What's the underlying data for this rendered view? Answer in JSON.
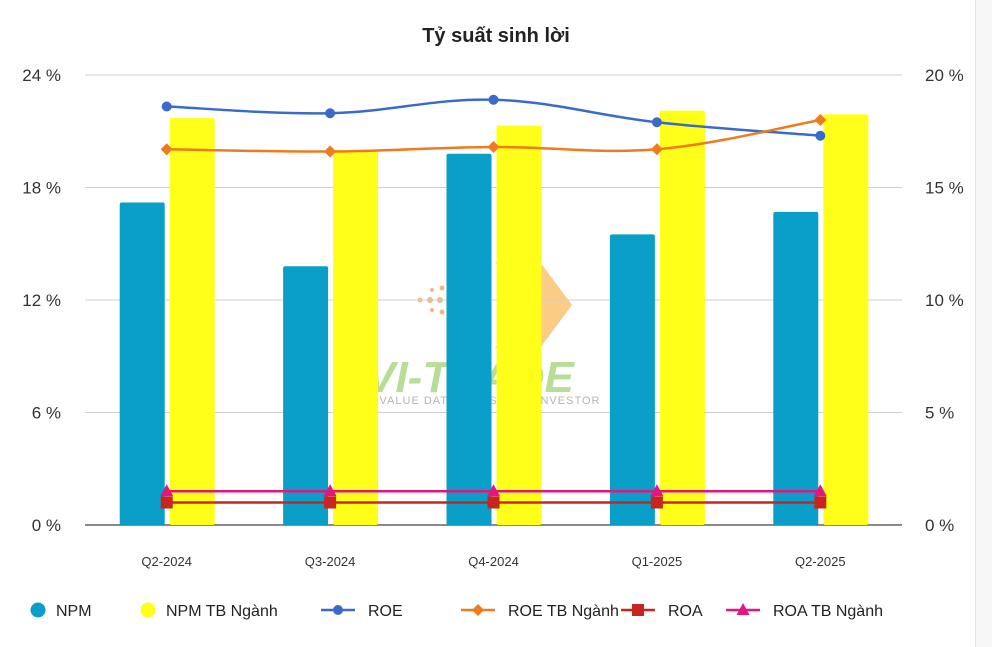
{
  "chart_data": {
    "type": "bar",
    "title": "Tỷ suất sinh lời",
    "categories": [
      "Q2-2024",
      "Q3-2024",
      "Q4-2024",
      "Q1-2025",
      "Q2-2025"
    ],
    "left_axis": {
      "ylim": [
        0,
        24
      ],
      "ticks": [
        0,
        6,
        12,
        18,
        24
      ],
      "tick_labels": [
        "0 %",
        "6 %",
        "12 %",
        "18 %",
        "24 %"
      ]
    },
    "right_axis": {
      "ylim": [
        0,
        20
      ],
      "ticks": [
        0,
        5,
        10,
        15,
        20
      ],
      "tick_labels": [
        "0 %",
        "5 %",
        "10 %",
        "15 %",
        "20 %"
      ]
    },
    "grid": true,
    "legend_position": "bottom",
    "series": [
      {
        "name": "NPM",
        "kind": "bar",
        "axis": "left",
        "color": "#0a9fc9",
        "values": [
          17.2,
          13.8,
          19.8,
          15.5,
          16.7
        ]
      },
      {
        "name": "NPM TB Ngành",
        "kind": "bar",
        "axis": "left",
        "color": "#ffff1a",
        "values": [
          21.7,
          20.0,
          21.3,
          22.1,
          21.9
        ]
      },
      {
        "name": "ROE",
        "kind": "line",
        "axis": "right",
        "color": "#3a6bcc",
        "marker": "circle",
        "values": [
          18.6,
          18.3,
          18.9,
          17.9,
          17.3
        ]
      },
      {
        "name": "ROE TB Ngành",
        "kind": "line",
        "axis": "right",
        "color": "#f07b1e",
        "marker": "diamond",
        "values": [
          16.7,
          16.6,
          16.8,
          16.7,
          18.0
        ]
      },
      {
        "name": "ROA",
        "kind": "line",
        "axis": "right",
        "color": "#c9251f",
        "marker": "square",
        "values": [
          1.0,
          1.0,
          1.0,
          1.0,
          1.0
        ]
      },
      {
        "name": "ROA TB Ngành",
        "kind": "line",
        "axis": "right",
        "color": "#e3167f",
        "marker": "triangle",
        "values": [
          1.5,
          1.5,
          1.5,
          1.5,
          1.5
        ]
      }
    ]
  },
  "watermark": {
    "text": "VI-TRADE",
    "tagline": "VALUE DATA FOR SMART INVESTOR"
  }
}
